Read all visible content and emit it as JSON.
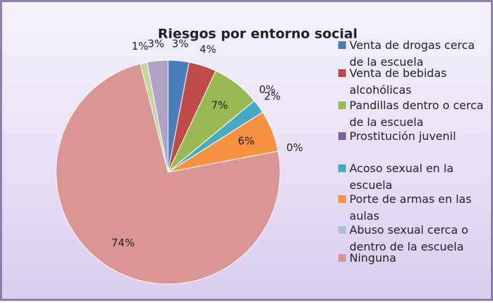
{
  "chart_data": {
    "type": "pie",
    "title": "Riesgos por entorno social",
    "categories": [
      "Venta de drogas cerca de la escuela",
      "Venta de bebidas alcohólicas",
      "Pandillas dentro o cerca de la escuela",
      "Prostitución juvenil",
      "Acoso sexual en la escuela",
      "Porte de armas en las aulas",
      "Abuso sexual cerca o dentro de la escuela",
      "Ninguna",
      null,
      null
    ],
    "values": [
      3,
      4,
      7,
      0,
      2,
      6,
      0,
      74,
      1,
      3
    ],
    "value_labels": [
      "3%",
      "4%",
      "7%",
      "0%",
      "2%",
      "6%",
      "0%",
      "74%",
      "1%",
      "3%"
    ],
    "colors": [
      "#4a7ebb",
      "#be4b48",
      "#98b954",
      "#7d60a0",
      "#46aac5",
      "#f69240",
      "#a7c0de",
      "#da9694",
      "#c3d69b",
      "#b3a2c7"
    ],
    "legend": "right"
  }
}
